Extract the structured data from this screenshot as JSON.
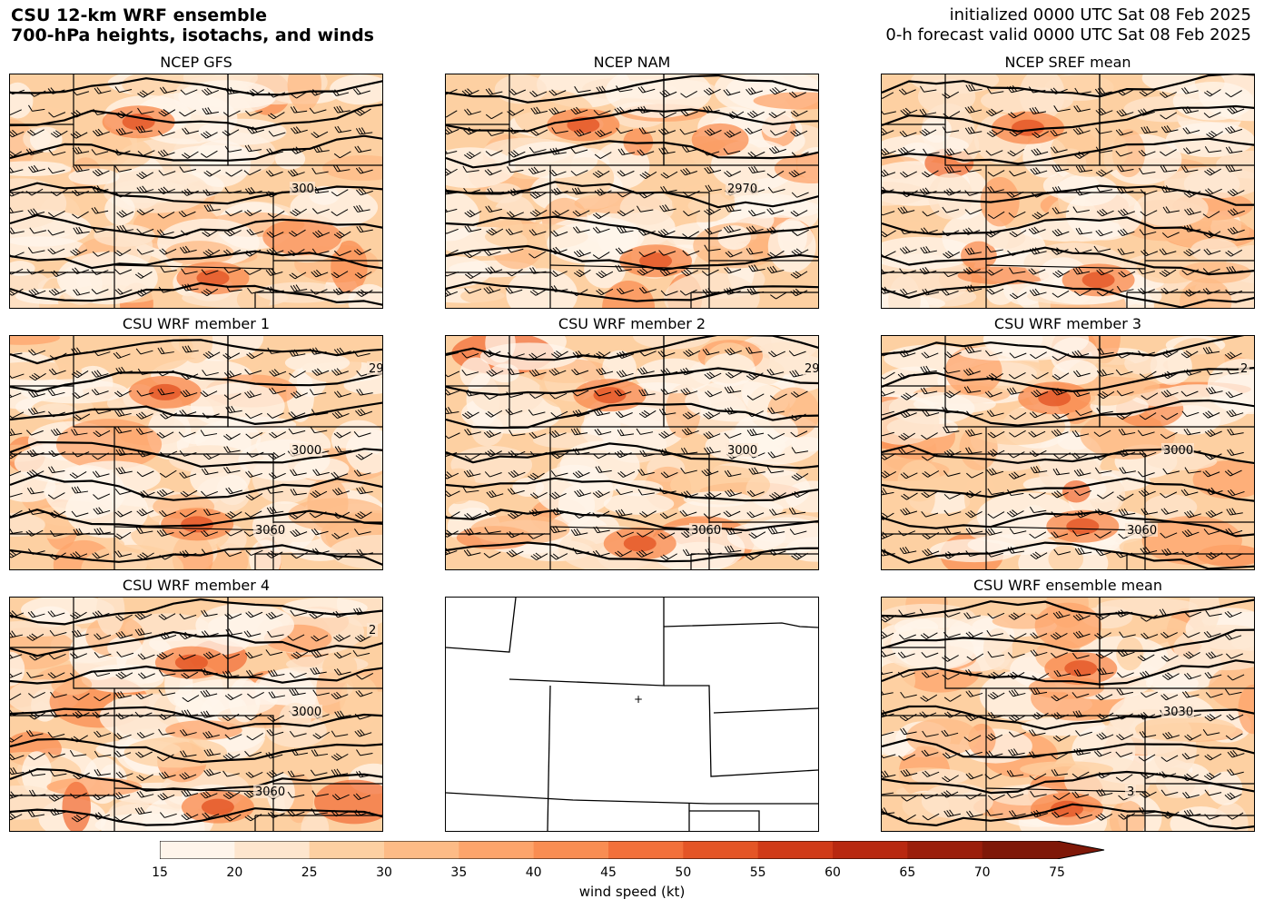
{
  "header": {
    "title_line1": "CSU 12-km WRF ensemble",
    "title_line2": "700-hPa heights, isotachs, and winds",
    "init_line": "initialized 0000 UTC Sat 08 Feb 2025",
    "valid_line": "0-h forecast valid 0000 UTC Sat 08 Feb 2025"
  },
  "panels": [
    {
      "title": "NCEP GFS",
      "contour_labels": [
        "300"
      ],
      "show_field": true
    },
    {
      "title": "NCEP NAM",
      "contour_labels": [
        "2970"
      ],
      "show_field": true
    },
    {
      "title": "NCEP SREF mean",
      "contour_labels": [],
      "show_field": true
    },
    {
      "title": "CSU WRF member 1",
      "contour_labels": [
        "3000",
        "3060",
        "29"
      ],
      "show_field": true
    },
    {
      "title": "CSU WRF member 2",
      "contour_labels": [
        "3000",
        "3060",
        "29"
      ],
      "show_field": true
    },
    {
      "title": "CSU WRF member 3",
      "contour_labels": [
        "3000",
        "3060",
        "2"
      ],
      "show_field": true
    },
    {
      "title": "CSU WRF member 4",
      "contour_labels": [
        "3000",
        "3060",
        "2"
      ],
      "show_field": true
    },
    {
      "title": "",
      "contour_labels": [],
      "show_field": false
    },
    {
      "title": "CSU WRF ensemble mean",
      "contour_labels": [
        "3030",
        "3"
      ],
      "show_field": true
    }
  ],
  "colorbar": {
    "label": "wind speed (kt)",
    "ticks": [
      "15",
      "20",
      "25",
      "30",
      "35",
      "40",
      "45",
      "50",
      "55",
      "60",
      "65",
      "70",
      "75"
    ],
    "colors": [
      "#fff5eb",
      "#fee6ce",
      "#fdd0a2",
      "#fdbb86",
      "#fda46b",
      "#f98d52",
      "#f2703a",
      "#e45526",
      "#d03a18",
      "#b82810",
      "#9b1e0b",
      "#7f1808"
    ],
    "extend_color": "#7f1808"
  }
}
